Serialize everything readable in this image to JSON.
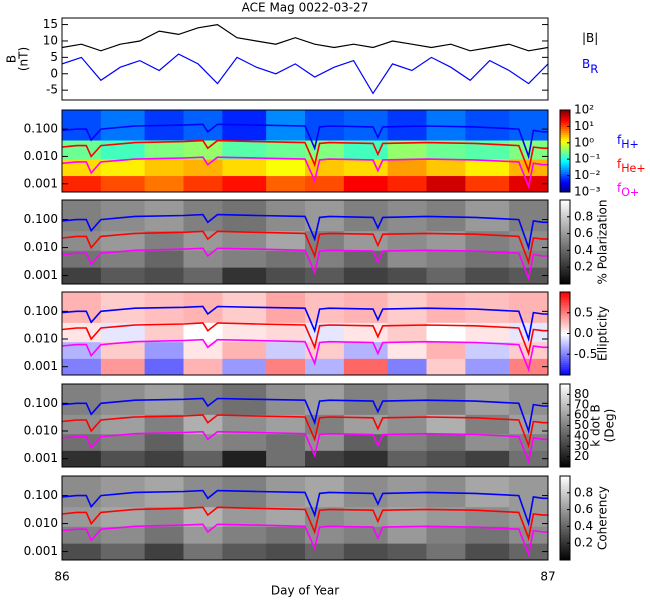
{
  "chart_data": [
    {
      "type": "line",
      "title": "ACE Mag 0022-03-27",
      "ylabel": [
        "B",
        "(nT)"
      ],
      "xlim": [
        86,
        87
      ],
      "ylim": [
        -8,
        17
      ],
      "yticks": [
        -5,
        0,
        5,
        10,
        15
      ],
      "series": [
        {
          "name": "|B|",
          "color": "#000000",
          "x": [
            86.0,
            86.04,
            86.08,
            86.12,
            86.16,
            86.2,
            86.24,
            86.28,
            86.32,
            86.36,
            86.4,
            86.44,
            86.48,
            86.52,
            86.56,
            86.6,
            86.64,
            86.68,
            86.72,
            86.76,
            86.8,
            86.84,
            86.88,
            86.92,
            86.96,
            87.0
          ],
          "values": [
            8,
            9,
            7,
            9,
            10,
            13,
            12,
            14,
            15,
            11,
            10,
            9,
            11,
            9,
            8,
            9,
            8,
            10,
            9,
            8,
            9,
            7,
            8,
            9,
            7,
            8
          ]
        },
        {
          "name": "B",
          "name_sub": "R",
          "color": "#0000ff",
          "x": [
            86.0,
            86.04,
            86.08,
            86.12,
            86.16,
            86.2,
            86.24,
            86.28,
            86.32,
            86.36,
            86.4,
            86.44,
            86.48,
            86.52,
            86.56,
            86.6,
            86.64,
            86.68,
            86.72,
            86.76,
            86.8,
            86.84,
            86.88,
            86.92,
            86.96,
            87.0
          ],
          "values": [
            3,
            5,
            -2,
            2,
            4,
            1,
            6,
            3,
            -3,
            5,
            2,
            0,
            3,
            -1,
            2,
            4,
            -6,
            3,
            1,
            5,
            2,
            -2,
            4,
            1,
            -3,
            3
          ]
        }
      ]
    },
    {
      "type": "spectrogram",
      "log_y": true,
      "xlim": [
        86,
        87
      ],
      "ylim": [
        0.0005,
        0.5
      ],
      "yticks": [
        0.001,
        {
          "value": 0.01,
          "label": "0.010"
        },
        {
          "value": 0.1,
          "label": "0.100"
        }
      ],
      "colormap": "jet",
      "clim": [
        -3,
        2
      ],
      "cticks": [
        {
          "value": -3,
          "label": "10⁻³"
        },
        {
          "value": -2,
          "label": "10⁻²"
        },
        {
          "value": -1,
          "label": "10⁻¹"
        },
        {
          "value": 0,
          "label": "10⁰"
        },
        {
          "value": 1,
          "label": "10¹"
        },
        {
          "value": 2,
          "label": "10²"
        }
      ],
      "xbins": [
        86,
        86.08,
        86.17,
        86.25,
        86.33,
        86.42,
        86.5,
        86.58,
        86.67,
        86.75,
        86.83,
        86.92,
        87
      ],
      "ybins": [
        0.0005,
        0.002,
        0.008,
        0.04,
        0.5
      ],
      "z": [
        [
          1.2,
          1.0,
          0.8,
          1.1,
          1.3,
          0.9,
          1.0,
          1.4,
          1.2,
          1.6,
          1.1,
          1.5
        ],
        [
          0.3,
          0.2,
          0.4,
          0.5,
          0.3,
          0.1,
          0.4,
          0.3,
          0.6,
          0.4,
          0.2,
          0.5
        ],
        [
          -0.6,
          -0.8,
          -0.5,
          -0.4,
          -0.7,
          -0.6,
          -0.5,
          -0.8,
          -0.4,
          -0.6,
          -0.7,
          -0.5
        ],
        [
          -2.0,
          -1.8,
          -2.1,
          -1.9,
          -2.2,
          -1.7,
          -2.0,
          -1.9,
          -2.1,
          -1.8,
          -2.0,
          -1.9
        ]
      ],
      "series": [
        {
          "name": "f",
          "name_sub": "H+",
          "color": "#0000ff",
          "x": [
            86.0,
            86.03,
            86.05,
            86.06,
            86.08,
            86.15,
            86.25,
            86.29,
            86.3,
            86.32,
            86.4,
            86.5,
            86.52,
            86.53,
            86.55,
            86.64,
            86.65,
            86.66,
            86.75,
            86.85,
            86.94,
            86.96,
            86.97,
            86.99,
            87.0
          ],
          "values": [
            0.09,
            0.1,
            0.1,
            0.04,
            0.1,
            0.13,
            0.14,
            0.15,
            0.08,
            0.15,
            0.14,
            0.13,
            0.02,
            0.12,
            0.13,
            0.12,
            0.05,
            0.12,
            0.13,
            0.12,
            0.1,
            0.01,
            0.09,
            0.08,
            0.08
          ]
        },
        {
          "name": "f",
          "name_sub": "He+",
          "color": "#ff0000",
          "x": [
            86.0,
            86.03,
            86.05,
            86.06,
            86.08,
            86.15,
            86.25,
            86.29,
            86.3,
            86.32,
            86.4,
            86.5,
            86.52,
            86.53,
            86.55,
            86.64,
            86.65,
            86.66,
            86.75,
            86.85,
            86.94,
            86.96,
            86.97,
            86.99,
            87.0
          ],
          "values": [
            0.022,
            0.025,
            0.025,
            0.01,
            0.025,
            0.032,
            0.035,
            0.038,
            0.02,
            0.038,
            0.035,
            0.032,
            0.005,
            0.03,
            0.032,
            0.03,
            0.012,
            0.03,
            0.032,
            0.03,
            0.025,
            0.003,
            0.022,
            0.02,
            0.02
          ]
        },
        {
          "name": "f",
          "name_sub": "O+",
          "color": "#ff00ff",
          "x": [
            86.0,
            86.03,
            86.05,
            86.06,
            86.08,
            86.15,
            86.25,
            86.29,
            86.3,
            86.32,
            86.4,
            86.5,
            86.52,
            86.53,
            86.55,
            86.64,
            86.65,
            86.66,
            86.75,
            86.85,
            86.94,
            86.96,
            86.97,
            86.99,
            87.0
          ],
          "values": [
            0.0056,
            0.0063,
            0.0063,
            0.0025,
            0.0063,
            0.008,
            0.0088,
            0.0094,
            0.005,
            0.0094,
            0.0088,
            0.008,
            0.0013,
            0.0075,
            0.008,
            0.0075,
            0.003,
            0.0075,
            0.008,
            0.0075,
            0.0063,
            0.0008,
            0.0056,
            0.005,
            0.005
          ]
        }
      ]
    },
    {
      "type": "spectrogram",
      "log_y": true,
      "xlim": [
        86,
        87
      ],
      "ylim": [
        0.0005,
        0.5
      ],
      "yticks": [
        0.001,
        {
          "value": 0.01,
          "label": "0.010"
        },
        {
          "value": 0.1,
          "label": "0.100"
        }
      ],
      "colormap": "gray",
      "clim": [
        0,
        1
      ],
      "cticks": [
        0.2,
        0.4,
        0.6,
        0.8
      ],
      "colorbar_label": "% Polarization",
      "xbins": [
        86,
        86.08,
        86.17,
        86.25,
        86.33,
        86.42,
        86.5,
        86.58,
        86.67,
        86.75,
        86.83,
        86.92,
        87
      ],
      "ybins": [
        0.0005,
        0.002,
        0.008,
        0.04,
        0.5
      ],
      "z": [
        [
          0.25,
          0.35,
          0.3,
          0.4,
          0.2,
          0.3,
          0.35,
          0.25,
          0.3,
          0.4,
          0.3,
          0.35
        ],
        [
          0.45,
          0.5,
          0.4,
          0.55,
          0.5,
          0.45,
          0.5,
          0.4,
          0.55,
          0.5,
          0.45,
          0.5
        ],
        [
          0.55,
          0.6,
          0.5,
          0.6,
          0.55,
          0.65,
          0.5,
          0.6,
          0.55,
          0.6,
          0.5,
          0.55
        ],
        [
          0.5,
          0.55,
          0.6,
          0.5,
          0.45,
          0.55,
          0.6,
          0.5,
          0.55,
          0.5,
          0.6,
          0.5
        ]
      ]
    },
    {
      "type": "spectrogram",
      "log_y": true,
      "xlim": [
        86,
        87
      ],
      "ylim": [
        0.0005,
        0.5
      ],
      "yticks": [
        0.001,
        {
          "value": 0.01,
          "label": "0.010"
        },
        {
          "value": 0.1,
          "label": "0.100"
        }
      ],
      "colormap": "bwr",
      "clim": [
        -1,
        1
      ],
      "cticks": [
        -0.5,
        {
          "value": 0,
          "label": "0.0"
        },
        0.5
      ],
      "colorbar_label": "Ellipticity",
      "xbins": [
        86,
        86.08,
        86.17,
        86.25,
        86.33,
        86.42,
        86.5,
        86.58,
        86.67,
        86.75,
        86.83,
        86.92,
        87
      ],
      "ybins": [
        0.0005,
        0.002,
        0.008,
        0.04,
        0.5
      ],
      "z": [
        [
          -0.5,
          0.4,
          -0.6,
          0.3,
          -0.4,
          0.5,
          -0.3,
          0.6,
          -0.5,
          0.2,
          -0.4,
          0.5
        ],
        [
          -0.3,
          0.2,
          -0.4,
          0.1,
          0.3,
          -0.2,
          0.2,
          -0.3,
          0.1,
          0.3,
          -0.2,
          0.2
        ],
        [
          0.1,
          -0.1,
          0.2,
          0,
          0.1,
          0.15,
          -0.1,
          0.1,
          0.2,
          0,
          0.1,
          -0.1
        ],
        [
          0.3,
          0.2,
          0.25,
          0.3,
          0.2,
          0.35,
          0.25,
          0.3,
          0.2,
          0.3,
          0.25,
          0.3
        ]
      ]
    },
    {
      "type": "spectrogram",
      "log_y": true,
      "xlim": [
        86,
        87
      ],
      "ylim": [
        0.0005,
        0.5
      ],
      "yticks": [
        0.001,
        {
          "value": 0.01,
          "label": "0.010"
        },
        {
          "value": 0.1,
          "label": "0.100"
        }
      ],
      "colormap": "gray",
      "clim": [
        10,
        90
      ],
      "cticks": [
        20,
        30,
        40,
        50,
        60,
        70,
        80
      ],
      "colorbar_label": [
        "k dot B",
        "(Deg)"
      ],
      "xbins": [
        86,
        86.08,
        86.17,
        86.25,
        86.33,
        86.42,
        86.5,
        86.58,
        86.67,
        86.75,
        86.83,
        86.92,
        87
      ],
      "ybins": [
        0.0005,
        0.002,
        0.008,
        0.04,
        0.5
      ],
      "z": [
        [
          25,
          35,
          30,
          40,
          20,
          45,
          30,
          25,
          40,
          35,
          30,
          45
        ],
        [
          45,
          50,
          40,
          55,
          50,
          45,
          55,
          40,
          50,
          45,
          55,
          50
        ],
        [
          55,
          60,
          50,
          65,
          55,
          60,
          50,
          60,
          55,
          65,
          50,
          60
        ],
        [
          50,
          55,
          60,
          50,
          45,
          55,
          60,
          50,
          55,
          50,
          60,
          55
        ]
      ]
    },
    {
      "type": "spectrogram",
      "log_y": true,
      "xlim": [
        86,
        87
      ],
      "ylim": [
        0.0005,
        0.5
      ],
      "yticks": [
        0.001,
        {
          "value": 0.01,
          "label": "0.010"
        },
        {
          "value": 0.1,
          "label": "0.100"
        }
      ],
      "colormap": "gray",
      "clim": [
        0,
        1
      ],
      "cticks": [
        0.2,
        0.4,
        0.6,
        0.8
      ],
      "colorbar_label": "Coherency",
      "xlabel": "Day of Year",
      "xticks": [
        86,
        87
      ],
      "xbins": [
        86,
        86.08,
        86.17,
        86.25,
        86.33,
        86.42,
        86.5,
        86.58,
        86.67,
        86.75,
        86.83,
        86.92,
        87
      ],
      "ybins": [
        0.0005,
        0.002,
        0.008,
        0.04,
        0.5
      ],
      "z": [
        [
          0.3,
          0.4,
          0.25,
          0.45,
          0.35,
          0.3,
          0.4,
          0.3,
          0.35,
          0.45,
          0.3,
          0.4
        ],
        [
          0.5,
          0.55,
          0.45,
          0.6,
          0.5,
          0.45,
          0.55,
          0.5,
          0.6,
          0.5,
          0.45,
          0.55
        ],
        [
          0.6,
          0.65,
          0.55,
          0.7,
          0.6,
          0.65,
          0.55,
          0.6,
          0.65,
          0.6,
          0.55,
          0.6
        ],
        [
          0.55,
          0.6,
          0.65,
          0.55,
          0.5,
          0.6,
          0.65,
          0.55,
          0.6,
          0.55,
          0.65,
          0.6
        ]
      ]
    }
  ]
}
